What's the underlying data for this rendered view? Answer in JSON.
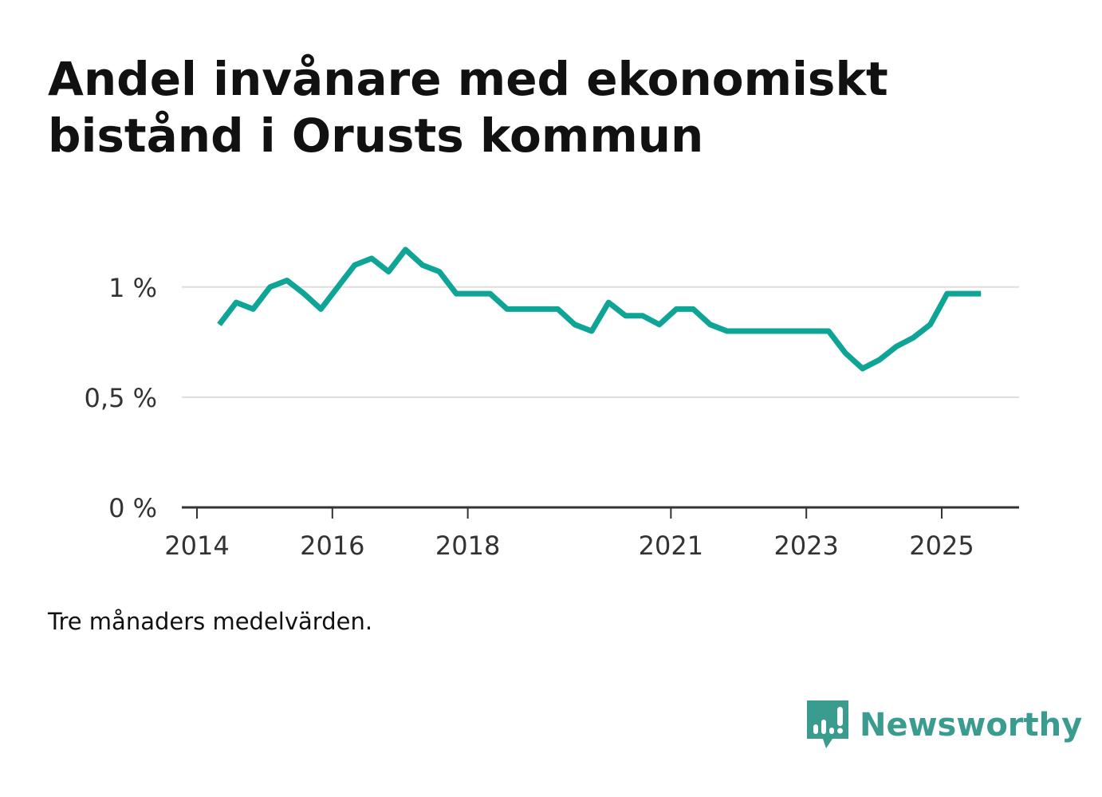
{
  "title": "Andel invånare med ekonomiskt bistånd i Orusts kommun",
  "note": "Tre månaders medelvärden.",
  "brand": {
    "name": "Newsworthy",
    "icon": "bar-chart-speech-bubble-icon"
  },
  "colors": {
    "line": "#0fa596",
    "grid": "#dddddd",
    "axis": "#333333",
    "text": "#333333",
    "brand": "#3a9b8f"
  },
  "chart_data": {
    "type": "line",
    "title": "Andel invånare med ekonomiskt bistånd i Orusts kommun",
    "xlabel": "",
    "ylabel": "",
    "xlim": [
      2013.9,
      2026.1
    ],
    "ylim": [
      0,
      1.2
    ],
    "y_ticks": [
      {
        "value": 0,
        "label": "0 %"
      },
      {
        "value": 0.5,
        "label": "0,5 %"
      },
      {
        "value": 1,
        "label": "1 %"
      }
    ],
    "x_ticks": [
      {
        "value": 2014,
        "label": "2014"
      },
      {
        "value": 2016,
        "label": "2016"
      },
      {
        "value": 2018,
        "label": "2018"
      },
      {
        "value": 2021,
        "label": "2021"
      },
      {
        "value": 2023,
        "label": "2023"
      },
      {
        "value": 2025,
        "label": "2025"
      }
    ],
    "series": [
      {
        "name": "Andel",
        "x": [
          2014.33,
          2014.58,
          2014.83,
          2015.08,
          2015.33,
          2015.58,
          2015.83,
          2016.08,
          2016.33,
          2016.58,
          2016.83,
          2017.08,
          2017.33,
          2017.58,
          2017.83,
          2018.08,
          2018.33,
          2018.58,
          2018.83,
          2019.08,
          2019.33,
          2019.58,
          2019.83,
          2020.08,
          2020.33,
          2020.58,
          2020.83,
          2021.08,
          2021.33,
          2021.58,
          2021.83,
          2022.08,
          2022.33,
          2022.58,
          2022.83,
          2023.08,
          2023.33,
          2023.58,
          2023.83,
          2024.08,
          2024.33,
          2024.58,
          2024.83,
          2025.08,
          2025.33,
          2025.58
        ],
        "values": [
          0.83,
          0.93,
          0.9,
          1.0,
          1.03,
          0.97,
          0.9,
          1.0,
          1.1,
          1.13,
          1.07,
          1.17,
          1.1,
          1.07,
          0.97,
          0.97,
          0.97,
          0.9,
          0.9,
          0.9,
          0.9,
          0.83,
          0.8,
          0.93,
          0.87,
          0.87,
          0.83,
          0.9,
          0.9,
          0.83,
          0.8,
          0.8,
          0.8,
          0.8,
          0.8,
          0.8,
          0.8,
          0.7,
          0.63,
          0.67,
          0.73,
          0.77,
          0.83,
          0.97,
          0.97,
          0.97
        ]
      }
    ]
  }
}
